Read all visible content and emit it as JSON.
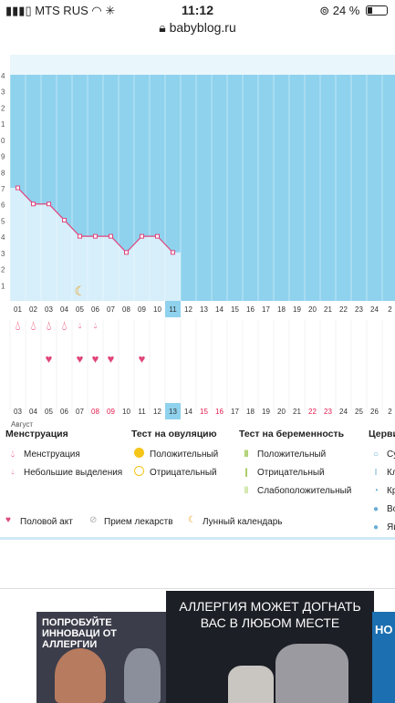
{
  "status_bar": {
    "carrier": "MTS RUS",
    "time": "11:12",
    "battery": "24 %"
  },
  "browser": {
    "url": "babyblog.ru"
  },
  "chart": {
    "temps_label_scale": [
      "4",
      "3",
      "2",
      "1",
      "0",
      "9",
      "8",
      "7",
      "6",
      "5",
      "4",
      "3",
      "2",
      "1"
    ],
    "top_days": [
      "01",
      "02",
      "03",
      "04",
      "05",
      "06",
      "07",
      "08",
      "09",
      "10",
      "11",
      "12",
      "13",
      "14",
      "15",
      "16",
      "17",
      "18",
      "19",
      "20",
      "21",
      "22",
      "23",
      "24",
      "2"
    ],
    "current_top": "11",
    "bottom_days": [
      "03",
      "04",
      "05",
      "06",
      "07",
      "08",
      "09",
      "10",
      "11",
      "12",
      "13",
      "14",
      "15",
      "16",
      "17",
      "18",
      "19",
      "20",
      "21",
      "22",
      "23",
      "24",
      "25",
      "26",
      "2"
    ],
    "current_bottom": "13",
    "red_bottom_days": [
      "08",
      "09",
      "15",
      "16",
      "22",
      "23"
    ],
    "month_label": "Август"
  },
  "chart_data": {
    "type": "line",
    "x": [
      "01",
      "02",
      "03",
      "04",
      "05",
      "06",
      "07",
      "08",
      "09",
      "10",
      "11"
    ],
    "values": [
      7,
      6,
      6,
      5,
      4,
      4,
      4,
      3,
      4,
      4,
      3
    ],
    "menstruation": [
      "01",
      "02",
      "03",
      "04",
      "05",
      "06"
    ],
    "menstruation_small": [
      "05",
      "06"
    ],
    "intercourse": [
      "03",
      "05",
      "06",
      "07",
      "09"
    ]
  },
  "legend": {
    "menstruation_title": "Менструация",
    "menstruation_label": "Менструация",
    "small_label": "Небольшие выделения",
    "ovulation_title": "Тест на овуляцию",
    "ovulation_pos": "Положительный",
    "ovulation_neg": "Отрицательный",
    "pregnancy_title": "Тест на беременность",
    "preg_pos": "Положительный",
    "preg_neg": "Отрицательный",
    "preg_weak": "Слабоположительный",
    "cervix_title": "Церви",
    "cervix_1": "Су",
    "cervix_2": "Кл",
    "cervix_3": "Кр",
    "cervix_4": "Во",
    "cervix_5": "Яи",
    "intercourse_label": "Половой акт",
    "medication_label": "Прием лекарств",
    "moon_label": "Лунный календарь"
  },
  "ads": {
    "ad1_text": "ПОПРОБУЙТЕ ИННОВАЦИ ОТ АЛЛЕРГИИ",
    "ad2_text": "АЛЛЕРГИЯ МОЖЕТ ДОГНАТЬ ВАС В ЛЮБОМ МЕСТЕ",
    "ad3_text": "НО"
  },
  "colors": {
    "sky": "#8fd2ee",
    "pale": "#d6effb",
    "pink": "#e0457b",
    "red": "#e21b4d",
    "orange": "#f0a01f"
  }
}
